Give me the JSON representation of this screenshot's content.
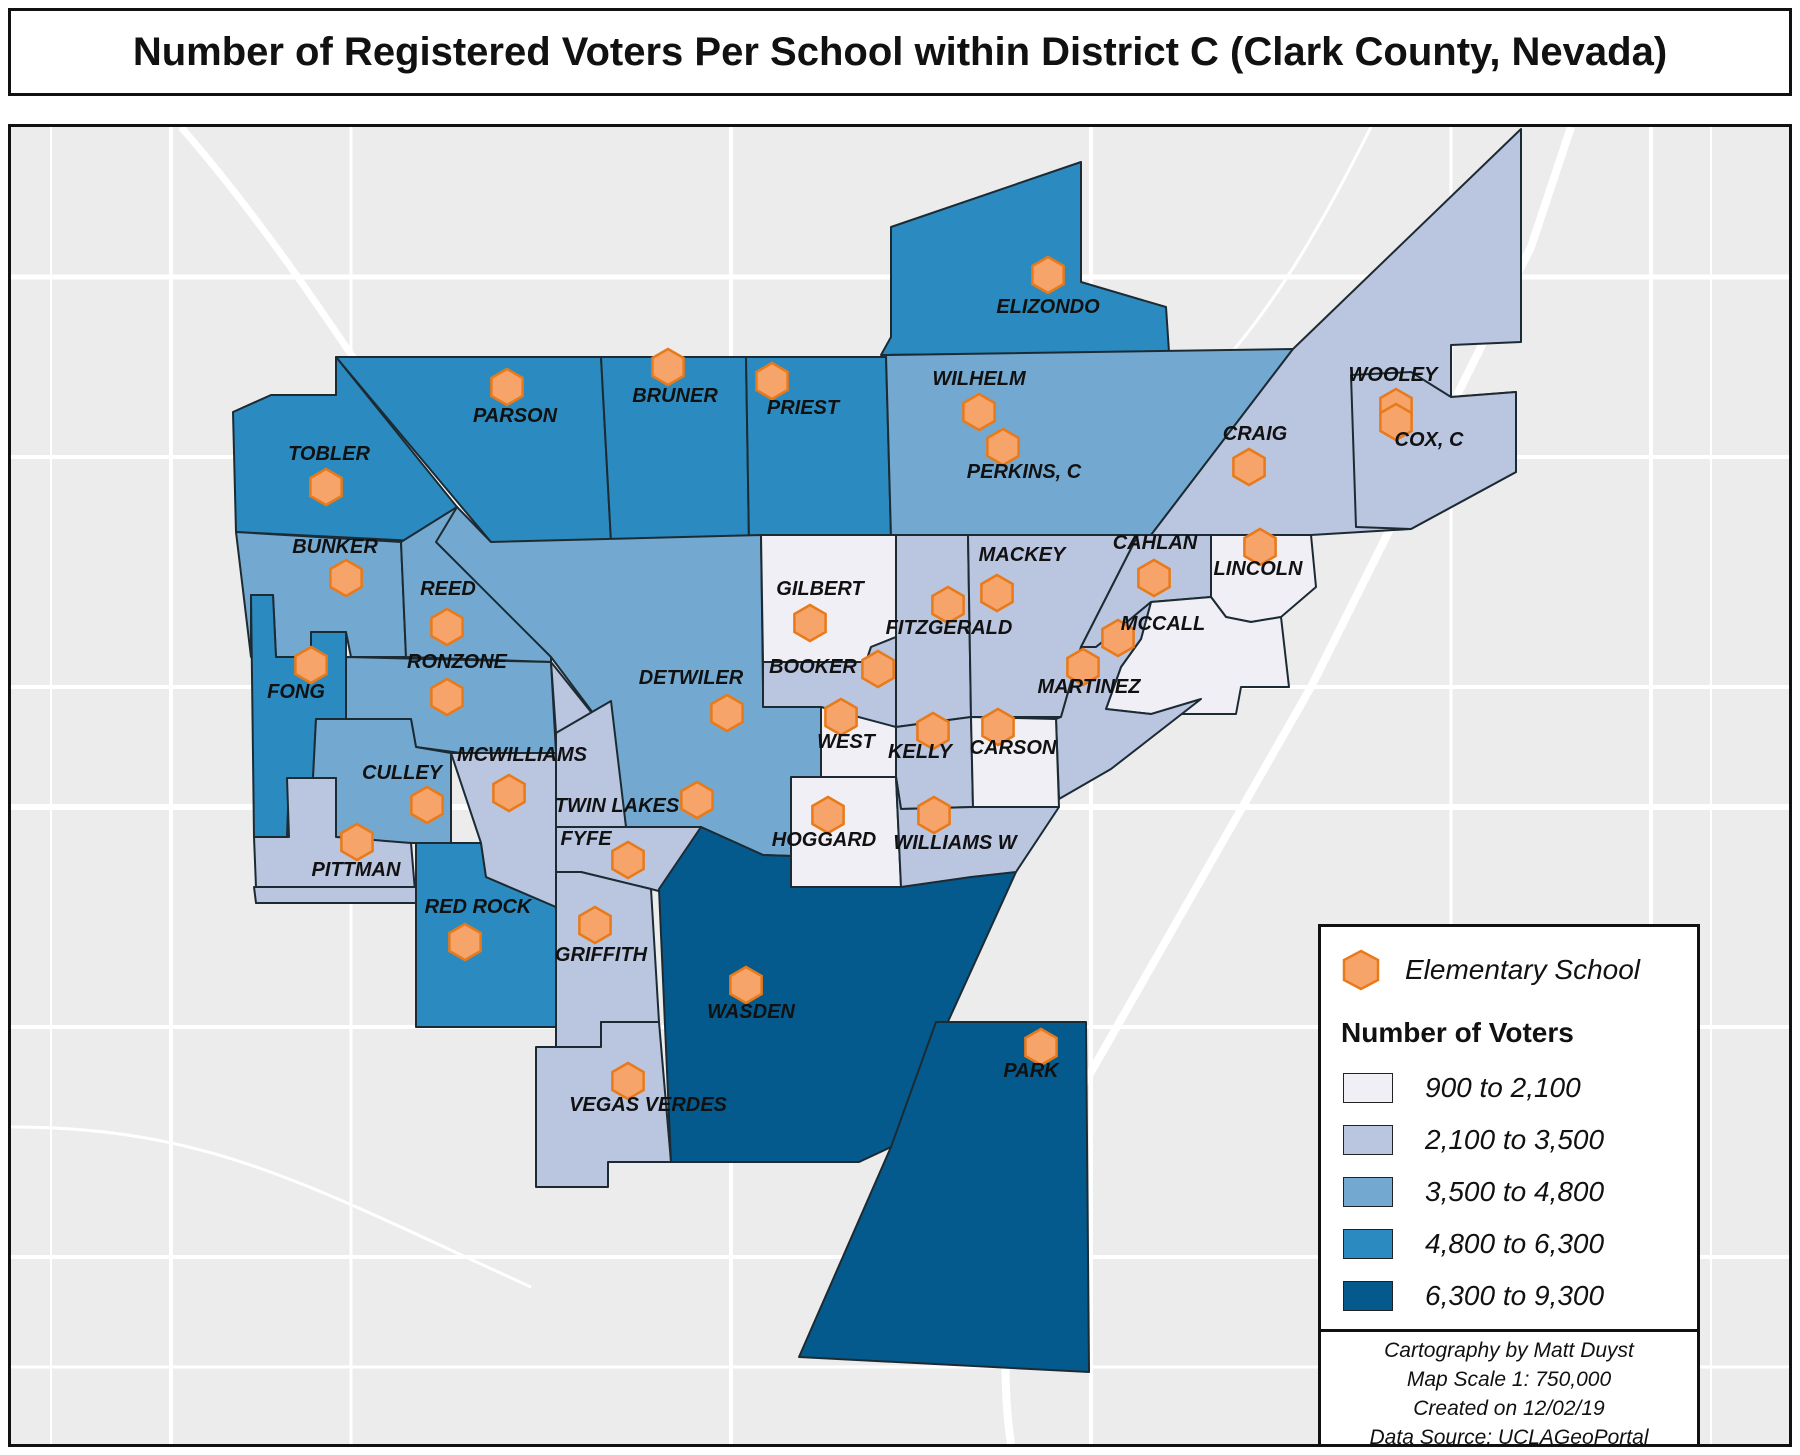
{
  "title": "Number of Registered Voters Per School within District C (Clark County, Nevada)",
  "colors": {
    "class1": "#f1eff6",
    "class2": "#bac5e0",
    "class3": "#73a9d0",
    "class4": "#2b8bc0",
    "class5": "#045a8d",
    "marker_fill": "#f7a46b",
    "marker_stroke": "#e87a1a",
    "basemap": "#ececec",
    "roads": "#ffffff"
  },
  "legend": {
    "school_label": "Elementary School",
    "school_icon": "orange-hexagon-icon",
    "heading": "Number of Voters",
    "classes": [
      {
        "label": "900 to 2,100",
        "color": "#f1eff6"
      },
      {
        "label": "2,100 to 3,500",
        "color": "#bac5e0"
      },
      {
        "label": "3,500 to 4,800",
        "color": "#73a9d0"
      },
      {
        "label": "4,800 to 6,300",
        "color": "#2b8bc0"
      },
      {
        "label": "6,300 to 9,300",
        "color": "#045a8d"
      }
    ],
    "credits": [
      "Cartography by Matt Duyst",
      "Map Scale 1: 750,000",
      "Created on 12/02/19",
      "Data Source: UCLAGeoPortal"
    ]
  },
  "schools": [
    {
      "name": "ELIZONDO",
      "class": 4
    },
    {
      "name": "PARSON",
      "class": 4
    },
    {
      "name": "BRUNER",
      "class": 4
    },
    {
      "name": "PRIEST",
      "class": 4
    },
    {
      "name": "WILHELM",
      "class": 3
    },
    {
      "name": "PERKINS, C",
      "class": 3
    },
    {
      "name": "WOOLEY",
      "class": 2
    },
    {
      "name": "COX, C",
      "class": 2
    },
    {
      "name": "CRAIG",
      "class": 2
    },
    {
      "name": "TOBLER",
      "class": 4
    },
    {
      "name": "BUNKER",
      "class": 3
    },
    {
      "name": "REED",
      "class": 3
    },
    {
      "name": "RONZONE",
      "class": 3
    },
    {
      "name": "FONG",
      "class": 4
    },
    {
      "name": "CULLEY",
      "class": 3
    },
    {
      "name": "PITTMAN",
      "class": 2
    },
    {
      "name": "MCWILLIAMS",
      "class": 2
    },
    {
      "name": "RED ROCK",
      "class": 4
    },
    {
      "name": "DETWILER",
      "class": 3
    },
    {
      "name": "TWIN LAKES",
      "class": 2
    },
    {
      "name": "FYFE",
      "class": 2
    },
    {
      "name": "GRIFFITH",
      "class": 2
    },
    {
      "name": "VEGAS VERDES",
      "class": 2
    },
    {
      "name": "WASDEN",
      "class": 5
    },
    {
      "name": "PARK",
      "class": 5
    },
    {
      "name": "GILBERT",
      "class": 1
    },
    {
      "name": "BOOKER",
      "class": 2
    },
    {
      "name": "FITZGERALD",
      "class": 2
    },
    {
      "name": "MACKEY",
      "class": 2
    },
    {
      "name": "CAHLAN",
      "class": 2
    },
    {
      "name": "LINCOLN",
      "class": 1
    },
    {
      "name": "MCCALL",
      "class": 1
    },
    {
      "name": "MARTINEZ",
      "class": 2
    },
    {
      "name": "WEST",
      "class": 1
    },
    {
      "name": "KELLY",
      "class": 1
    },
    {
      "name": "CARSON",
      "class": 1
    },
    {
      "name": "HOGGARD",
      "class": 1
    },
    {
      "name": "WILLIAMS W",
      "class": 2
    }
  ]
}
